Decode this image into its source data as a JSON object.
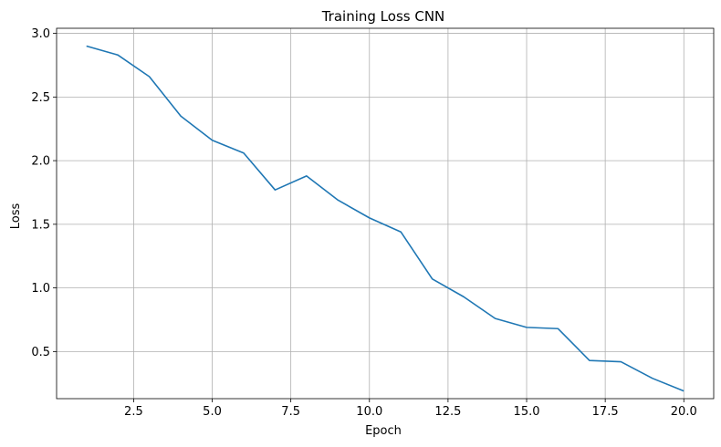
{
  "chart_data": {
    "type": "line",
    "title": "Training Loss CNN",
    "xlabel": "Epoch",
    "ylabel": "Loss",
    "xlim": [
      0.05,
      20.95
    ],
    "ylim": [
      0.13,
      3.04
    ],
    "grid": true,
    "legend": "none",
    "line_color": "#1f77b4",
    "x_ticks": [
      2.5,
      5.0,
      7.5,
      10.0,
      12.5,
      15.0,
      17.5,
      20.0
    ],
    "x_tick_labels": [
      "2.5",
      "5.0",
      "7.5",
      "10.0",
      "12.5",
      "15.0",
      "17.5",
      "20.0"
    ],
    "y_ticks": [
      0.5,
      1.0,
      1.5,
      2.0,
      2.5,
      3.0
    ],
    "y_tick_labels": [
      "0.5",
      "1.0",
      "1.5",
      "2.0",
      "2.5",
      "3.0"
    ],
    "series": [
      {
        "x": [
          1,
          2,
          3,
          4,
          5,
          6,
          7,
          8,
          9,
          10,
          11,
          12,
          13,
          14,
          15,
          16,
          17,
          18,
          19,
          20
        ],
        "values": [
          2.9,
          2.83,
          2.66,
          2.35,
          2.16,
          2.06,
          1.77,
          1.88,
          1.69,
          1.55,
          1.44,
          1.07,
          0.93,
          0.76,
          0.69,
          0.68,
          0.43,
          0.42,
          0.29,
          0.19
        ]
      }
    ]
  }
}
